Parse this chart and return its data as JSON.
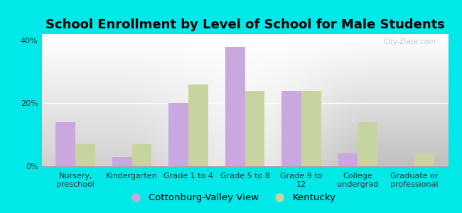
{
  "title": "School Enrollment by Level of School for Male Students",
  "categories": [
    "Nursery,\npreschool",
    "Kindergarten",
    "Grade 1 to 4",
    "Grade 5 to 8",
    "Grade 9 to\n12",
    "College\nundergrad",
    "Graduate or\nprofessional"
  ],
  "cottonburg_values": [
    14,
    3,
    20,
    38,
    24,
    4,
    0
  ],
  "kentucky_values": [
    7,
    7,
    26,
    24,
    24,
    14,
    4
  ],
  "bar_color_cottonburg": "#c9a8e0",
  "bar_color_kentucky": "#c8d4a0",
  "background_color": "#00e8e8",
  "ylabel_ticks": [
    "0%",
    "20%",
    "40%"
  ],
  "ytick_vals": [
    0,
    20,
    40
  ],
  "ylim": [
    0,
    42
  ],
  "legend_label_cottonburg": "Cottonburg-Valley View",
  "legend_label_kentucky": "Kentucky",
  "title_fontsize": 13,
  "tick_fontsize": 8,
  "legend_fontsize": 9.5,
  "bar_width": 0.35,
  "watermark": "City-Data.com",
  "plot_grad_top": "#ffffff",
  "plot_grad_bottom": "#d4e8c0"
}
